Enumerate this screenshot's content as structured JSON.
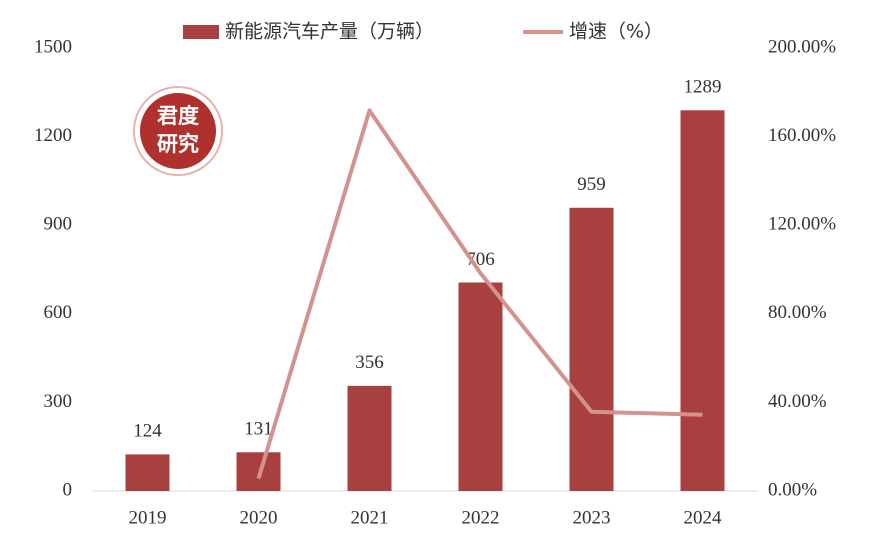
{
  "chart_data": {
    "type": "bar",
    "categories": [
      "2019",
      "2020",
      "2021",
      "2022",
      "2023",
      "2024"
    ],
    "series": [
      {
        "name": "新能源汽车产量（万辆）",
        "type": "bar",
        "color": "#a8403f",
        "values": [
          124,
          131,
          356,
          706,
          959,
          1289
        ]
      },
      {
        "name": "增速（%）",
        "type": "line",
        "axis": "y2",
        "color": "#d4928f",
        "values": [
          null,
          5.6,
          171.8,
          98.3,
          35.8,
          34.4
        ]
      }
    ],
    "ylim": [
      0,
      1500
    ],
    "yticks": [
      0,
      300,
      600,
      900,
      1200,
      1500
    ],
    "y2lim": [
      0,
      200
    ],
    "y2ticks": [
      {
        "value": 0,
        "label": "0.00%"
      },
      {
        "value": 40,
        "label": "40.00%"
      },
      {
        "value": 80,
        "label": "80.00%"
      },
      {
        "value": 120,
        "label": "120.00%"
      },
      {
        "value": 160,
        "label": "160.00%"
      },
      {
        "value": 200,
        "label": "200.00%"
      }
    ],
    "grid": false,
    "watermark": [
      "君度",
      "研究"
    ]
  }
}
